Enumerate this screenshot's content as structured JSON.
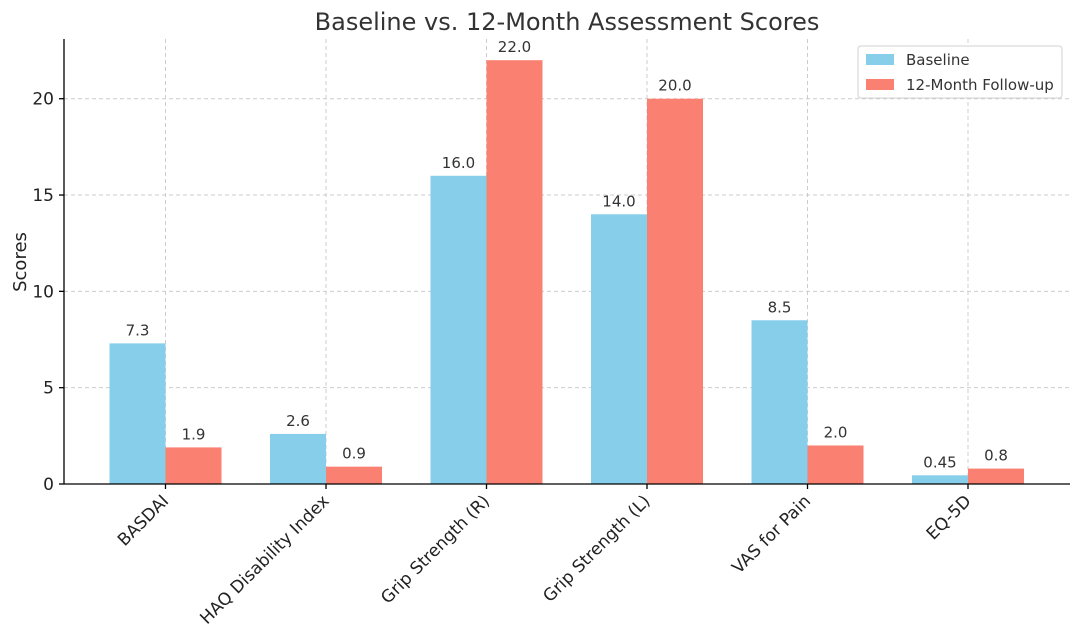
{
  "chart_data": {
    "type": "bar",
    "title": "Baseline vs. 12-Month Assessment Scores",
    "xlabel": "",
    "ylabel": "Scores",
    "categories": [
      "BASDAI",
      "HAQ Disability Index",
      "Grip Strength (R)",
      "Grip Strength (L)",
      "VAS for Pain",
      "EQ-5D"
    ],
    "series": [
      {
        "name": "Baseline",
        "values": [
          7.3,
          2.6,
          16.0,
          14.0,
          8.5,
          0.45
        ],
        "labels": [
          "7.3",
          "2.6",
          "16.0",
          "14.0",
          "8.5",
          "0.45"
        ],
        "color": "#87CEEB"
      },
      {
        "name": "12-Month Follow-up",
        "values": [
          1.9,
          0.9,
          22.0,
          20.0,
          2.0,
          0.8
        ],
        "labels": [
          "1.9",
          "0.9",
          "22.0",
          "20.0",
          "2.0",
          "0.8"
        ],
        "color": "#FA8072"
      }
    ],
    "ylim": [
      0,
      23.1
    ],
    "yticks": [
      0,
      5,
      10,
      15,
      20
    ],
    "grid": true,
    "legend_position": "top-right"
  }
}
